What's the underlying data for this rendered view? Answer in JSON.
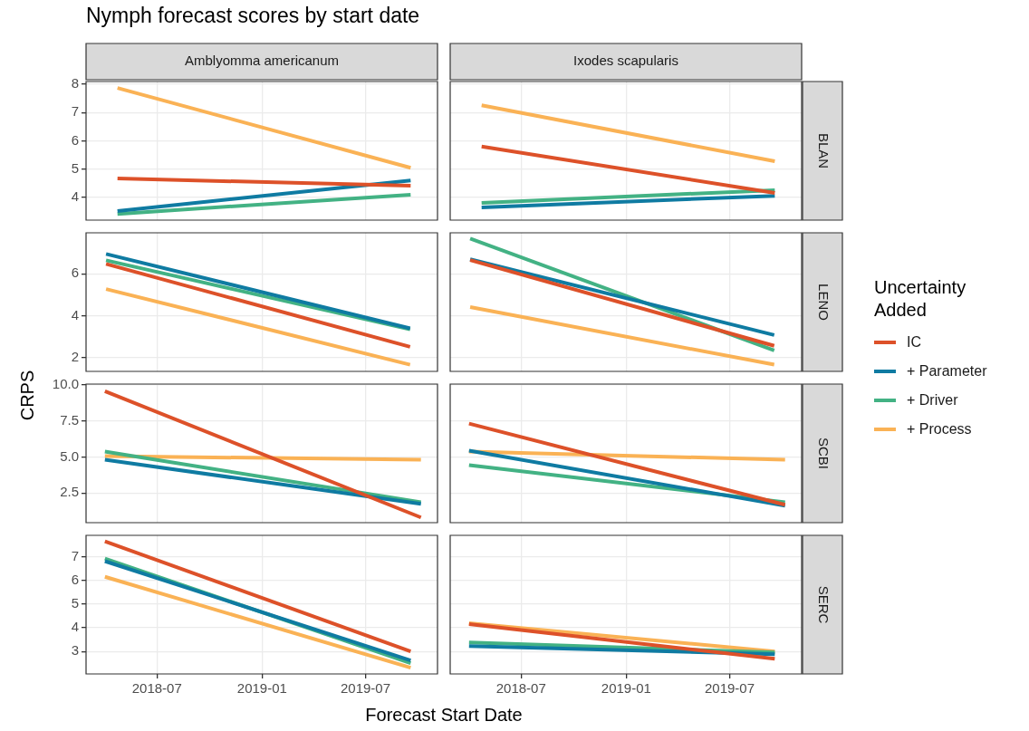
{
  "chart_data": [
    {
      "type": "line",
      "title": "Amblyomma americanum",
      "annotations": [
        "Nymph forecast scores by start date"
      ],
      "legend": "right",
      "legend_title": "Uncertainty Added",
      "x": [
        "2018-04-23",
        "2019-09-18"
      ],
      "xlim": [
        "2018-02-27",
        "2019-11-04"
      ],
      "xticks": [
        "2018-07",
        "2019-01",
        "2019-07"
      ],
      "ylim": [
        3.2,
        8.1
      ],
      "yticks": [
        4,
        5,
        6,
        7,
        8
      ],
      "grid": true,
      "tick_labels": "y",
      "series": [
        {
          "name": "IC",
          "color": "#dd5129",
          "values": [
            4.67,
            4.42
          ]
        },
        {
          "name": "+ Parameter",
          "color": "#0f7ba2",
          "values": [
            3.52,
            4.6
          ]
        },
        {
          "name": "+ Driver",
          "color": "#43b284",
          "values": [
            3.42,
            4.1
          ]
        },
        {
          "name": "+ Process",
          "color": "#fab255",
          "values": [
            7.87,
            5.05
          ]
        }
      ]
    },
    {
      "type": "line",
      "title": "Ixodes scapularis",
      "y2label": "BLAN",
      "x": [
        "2018-04-23",
        "2019-09-18"
      ],
      "xlim": [
        "2018-02-27",
        "2019-11-04"
      ],
      "xticks": [
        "2018-07",
        "2019-01",
        "2019-07"
      ],
      "ylim": [
        3.2,
        8.1
      ],
      "yticks": [
        4,
        5,
        6,
        7,
        8
      ],
      "grid": true,
      "tick_labels": false,
      "series": [
        {
          "color": "#dd5129",
          "values": [
            5.8,
            4.16
          ]
        },
        {
          "color": "#0f7ba2",
          "values": [
            3.65,
            4.06
          ]
        },
        {
          "color": "#43b284",
          "values": [
            3.81,
            4.26
          ]
        },
        {
          "color": "#fab255",
          "values": [
            7.26,
            5.28
          ]
        }
      ]
    },
    {
      "type": "line",
      "x": [
        "2018-04-03",
        "2019-09-17"
      ],
      "xlim": [
        "2018-02-27",
        "2019-11-04"
      ],
      "xticks": [
        "2018-07",
        "2019-01",
        "2019-07"
      ],
      "ylim": [
        1.35,
        7.95
      ],
      "yticks": [
        2,
        4,
        6
      ],
      "grid": true,
      "tick_labels": "y",
      "series": [
        {
          "color": "#dd5129",
          "values": [
            6.47,
            2.52
          ]
        },
        {
          "color": "#0f7ba2",
          "values": [
            6.94,
            3.4
          ]
        },
        {
          "color": "#43b284",
          "values": [
            6.64,
            3.35
          ]
        },
        {
          "color": "#fab255",
          "values": [
            5.27,
            1.67
          ]
        }
      ]
    },
    {
      "type": "line",
      "y2label": "LENO",
      "x": [
        "2018-04-03",
        "2019-09-17"
      ],
      "xlim": [
        "2018-02-27",
        "2019-11-04"
      ],
      "xticks": [
        "2018-07",
        "2019-01",
        "2019-07"
      ],
      "ylim": [
        1.35,
        7.95
      ],
      "yticks": [
        2,
        4,
        6
      ],
      "grid": true,
      "tick_labels": false,
      "series": [
        {
          "color": "#dd5129",
          "values": [
            6.65,
            2.57
          ]
        },
        {
          "color": "#0f7ba2",
          "values": [
            6.69,
            3.08
          ]
        },
        {
          "color": "#43b284",
          "values": [
            7.67,
            2.35
          ]
        },
        {
          "color": "#fab255",
          "values": [
            4.41,
            1.67
          ]
        }
      ]
    },
    {
      "type": "line",
      "ylabel": "CRPS",
      "x": [
        "2018-04-01",
        "2019-10-06"
      ],
      "xlim": [
        "2018-02-27",
        "2019-11-04"
      ],
      "xticks": [
        "2018-07",
        "2019-01",
        "2019-07"
      ],
      "ylim": [
        0.45,
        10.05
      ],
      "yticks": [
        {
          "value": 2.5,
          "label": "2.5"
        },
        {
          "value": 5,
          "label": "5.0"
        },
        {
          "value": 7.5,
          "label": "7.5"
        },
        {
          "value": 10,
          "label": "10.0"
        }
      ],
      "grid": true,
      "tick_labels": "y",
      "series": [
        {
          "color": "#dd5129",
          "values": [
            9.56,
            0.81
          ]
        },
        {
          "color": "#0f7ba2",
          "values": [
            4.81,
            1.75
          ]
        },
        {
          "color": "#43b284",
          "values": [
            5.37,
            1.87
          ]
        },
        {
          "color": "#fab255",
          "values": [
            5.06,
            4.81
          ]
        }
      ]
    },
    {
      "type": "line",
      "y2label": "SCBI",
      "x": [
        "2018-04-01",
        "2019-10-06"
      ],
      "xlim": [
        "2018-02-27",
        "2019-11-04"
      ],
      "xticks": [
        "2018-07",
        "2019-01",
        "2019-07"
      ],
      "ylim": [
        0.45,
        10.05
      ],
      "yticks": [
        2.5,
        5,
        7.5,
        10
      ],
      "grid": true,
      "tick_labels": false,
      "series": [
        {
          "color": "#dd5129",
          "values": [
            7.31,
            1.69
          ]
        },
        {
          "color": "#0f7ba2",
          "values": [
            5.44,
            1.62
          ]
        },
        {
          "color": "#43b284",
          "values": [
            4.44,
            1.87
          ]
        },
        {
          "color": "#fab255",
          "values": [
            5.37,
            4.81
          ]
        }
      ]
    },
    {
      "type": "line",
      "xlabel": "Forecast Start Date",
      "x": [
        "2018-04-01",
        "2019-09-18"
      ],
      "xlim": [
        "2018-02-27",
        "2019-11-04"
      ],
      "xticks": [
        "2018-07",
        "2019-01",
        "2019-07"
      ],
      "ylim": [
        2.05,
        7.9
      ],
      "yticks": [
        3,
        4,
        5,
        6,
        7
      ],
      "grid": true,
      "series": [
        {
          "color": "#dd5129",
          "values": [
            7.65,
            3.0
          ]
        },
        {
          "color": "#0f7ba2",
          "values": [
            6.81,
            2.62
          ]
        },
        {
          "color": "#43b284",
          "values": [
            6.92,
            2.5
          ]
        },
        {
          "color": "#fab255",
          "values": [
            6.15,
            2.31
          ]
        }
      ]
    },
    {
      "type": "line",
      "y2label": "SERC",
      "x": [
        "2018-04-01",
        "2019-09-18"
      ],
      "xlim": [
        "2018-02-27",
        "2019-11-04"
      ],
      "xticks": [
        "2018-07",
        "2019-01",
        "2019-07"
      ],
      "ylim": [
        2.05,
        7.9
      ],
      "yticks": [
        3,
        4,
        5,
        6,
        7
      ],
      "grid": true,
      "tick_labels": "x",
      "series": [
        {
          "color": "#dd5129",
          "values": [
            4.15,
            2.69
          ]
        },
        {
          "color": "#0f7ba2",
          "values": [
            3.23,
            2.88
          ]
        },
        {
          "color": "#43b284",
          "values": [
            3.38,
            2.96
          ]
        },
        {
          "color": "#fab255",
          "values": [
            4.19,
            3.0
          ]
        }
      ]
    }
  ]
}
